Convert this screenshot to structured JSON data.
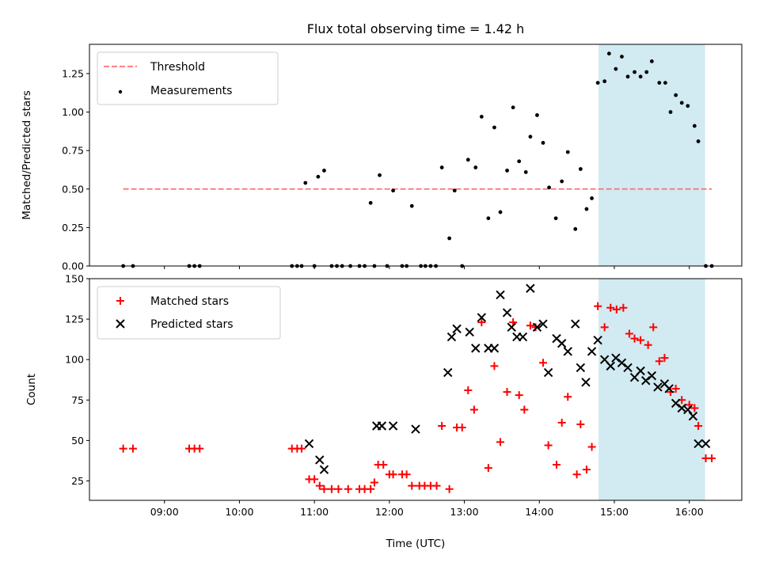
{
  "chart_data": [
    {
      "type": "scatter",
      "title": "Flux total observing time = 1.42 h",
      "xlabel": "",
      "ylabel": "Matched/Predicted stars",
      "xlim": [
        8.0,
        16.7
      ],
      "ylim": [
        0.0,
        1.44
      ],
      "yticks": [
        0.0,
        0.25,
        0.5,
        0.75,
        1.0,
        1.25
      ],
      "ytick_labels": [
        "0.00",
        "0.25",
        "0.50",
        "0.75",
        "1.00",
        "1.25"
      ],
      "xticks": [
        9,
        10,
        11,
        12,
        13,
        14,
        15,
        16
      ],
      "highlight_span": {
        "x0": 14.79,
        "x1": 16.21,
        "color": "#add8e6"
      },
      "legend_position": "top-left",
      "threshold": {
        "name": "Threshold",
        "y": 0.5,
        "x0": 8.45,
        "x1": 16.3,
        "color": "#ff7070"
      },
      "series": [
        {
          "name": "Measurements",
          "color": "#000000",
          "marker": "dot",
          "x": [
            8.45,
            8.58,
            9.33,
            9.4,
            9.47,
            10.7,
            10.77,
            10.83,
            10.88,
            11.0,
            11.05,
            11.13,
            11.23,
            11.3,
            11.37,
            11.48,
            11.6,
            11.67,
            11.75,
            11.8,
            11.87,
            11.97,
            12.05,
            12.17,
            12.23,
            12.3,
            12.42,
            12.48,
            12.55,
            12.62,
            12.7,
            12.8,
            12.87,
            12.97,
            13.05,
            13.15,
            13.23,
            13.32,
            13.4,
            13.48,
            13.57,
            13.65,
            13.73,
            13.82,
            13.88,
            13.97,
            14.05,
            14.13,
            14.22,
            14.3,
            14.38,
            14.48,
            14.55,
            14.63,
            14.7,
            14.78,
            14.87,
            14.93,
            15.02,
            15.1,
            15.18,
            15.27,
            15.35,
            15.43,
            15.5,
            15.6,
            15.68,
            15.75,
            15.82,
            15.9,
            15.98,
            16.07,
            16.12,
            16.22,
            16.3
          ],
          "y": [
            0.0,
            0.0,
            0.0,
            0.0,
            0.0,
            0.0,
            0.0,
            0.0,
            0.54,
            0.0,
            0.58,
            0.62,
            0.0,
            0.0,
            0.0,
            0.0,
            0.0,
            0.0,
            0.41,
            0.0,
            0.59,
            0.0,
            0.49,
            0.0,
            0.0,
            0.39,
            0.0,
            0.0,
            0.0,
            0.0,
            0.64,
            0.18,
            0.49,
            0.0,
            0.69,
            0.64,
            0.97,
            0.31,
            0.9,
            0.35,
            0.62,
            1.03,
            0.68,
            0.61,
            0.84,
            0.98,
            0.8,
            0.51,
            0.31,
            0.55,
            0.74,
            0.24,
            0.63,
            0.37,
            0.44,
            1.19,
            1.2,
            1.38,
            1.28,
            1.36,
            1.23,
            1.26,
            1.23,
            1.26,
            1.33,
            1.19,
            1.19,
            1.0,
            1.11,
            1.06,
            1.04,
            0.91,
            0.81,
            0.0,
            0.0
          ]
        }
      ]
    },
    {
      "type": "scatter",
      "title": "",
      "xlabel": "Time (UTC)",
      "ylabel": "Count",
      "xlim": [
        8.0,
        16.7
      ],
      "ylim": [
        13,
        150
      ],
      "yticks": [
        25,
        50,
        75,
        100,
        125,
        150
      ],
      "ytick_labels": [
        "25",
        "50",
        "75",
        "100",
        "125",
        "150"
      ],
      "xticks": [
        9,
        10,
        11,
        12,
        13,
        14,
        15,
        16
      ],
      "xtick_labels": [
        "09:00",
        "10:00",
        "11:00",
        "12:00",
        "13:00",
        "14:00",
        "15:00",
        "16:00"
      ],
      "highlight_span": {
        "x0": 14.79,
        "x1": 16.21,
        "color": "#add8e6"
      },
      "legend_position": "top-left",
      "series": [
        {
          "name": "Matched stars",
          "color": "#ff0000",
          "marker": "plus",
          "x": [
            8.45,
            8.58,
            9.33,
            9.4,
            9.47,
            10.7,
            10.77,
            10.83,
            10.93,
            11.0,
            11.07,
            11.13,
            11.23,
            11.32,
            11.45,
            11.6,
            11.67,
            11.75,
            11.8,
            11.85,
            11.92,
            12.0,
            12.05,
            12.17,
            12.23,
            12.3,
            12.4,
            12.47,
            12.55,
            12.63,
            12.7,
            12.8,
            12.9,
            12.97,
            13.05,
            13.13,
            13.23,
            13.32,
            13.4,
            13.48,
            13.57,
            13.65,
            13.73,
            13.8,
            13.88,
            13.95,
            14.05,
            14.12,
            14.23,
            14.3,
            14.38,
            14.5,
            14.55,
            14.63,
            14.7,
            14.78,
            14.87,
            14.95,
            15.03,
            15.12,
            15.2,
            15.27,
            15.35,
            15.45,
            15.52,
            15.6,
            15.67,
            15.75,
            15.82,
            15.9,
            16.0,
            16.07,
            16.12,
            16.22,
            16.3
          ],
          "y": [
            45,
            45,
            45,
            45,
            45,
            45,
            45,
            45,
            26,
            26,
            22,
            20,
            20,
            20,
            20,
            20,
            20,
            20,
            24,
            35,
            35,
            29,
            29,
            29,
            29,
            22,
            22,
            22,
            22,
            22,
            59,
            20,
            58,
            58,
            81,
            69,
            123,
            33,
            96,
            49,
            80,
            123,
            78,
            69,
            121,
            120,
            98,
            47,
            35,
            61,
            77,
            29,
            60,
            32,
            46,
            133,
            120,
            132,
            131,
            132,
            116,
            113,
            112,
            109,
            120,
            99,
            101,
            80,
            82,
            75,
            72,
            70,
            59,
            39,
            39
          ]
        },
        {
          "name": "Predicted stars",
          "color": "#000000",
          "marker": "x",
          "x": [
            10.93,
            11.07,
            11.13,
            11.83,
            11.9,
            12.05,
            12.35,
            12.78,
            12.83,
            12.9,
            13.07,
            13.15,
            13.23,
            13.32,
            13.4,
            13.48,
            13.57,
            13.63,
            13.7,
            13.78,
            13.88,
            13.97,
            14.05,
            14.12,
            14.23,
            14.3,
            14.38,
            14.48,
            14.55,
            14.62,
            14.7,
            14.78,
            14.87,
            14.95,
            15.02,
            15.1,
            15.18,
            15.27,
            15.35,
            15.42,
            15.5,
            15.58,
            15.67,
            15.73,
            15.82,
            15.9,
            15.98,
            16.05,
            16.12,
            16.22
          ],
          "y": [
            48,
            38,
            32,
            59,
            59,
            59,
            57,
            92,
            114,
            119,
            117,
            107,
            126,
            107,
            107,
            140,
            129,
            120,
            114,
            114,
            144,
            120,
            122,
            92,
            113,
            110,
            105,
            122,
            95,
            86,
            105,
            112,
            100,
            96,
            101,
            98,
            95,
            89,
            93,
            87,
            90,
            83,
            85,
            82,
            73,
            70,
            69,
            65,
            48,
            48
          ]
        }
      ]
    }
  ]
}
